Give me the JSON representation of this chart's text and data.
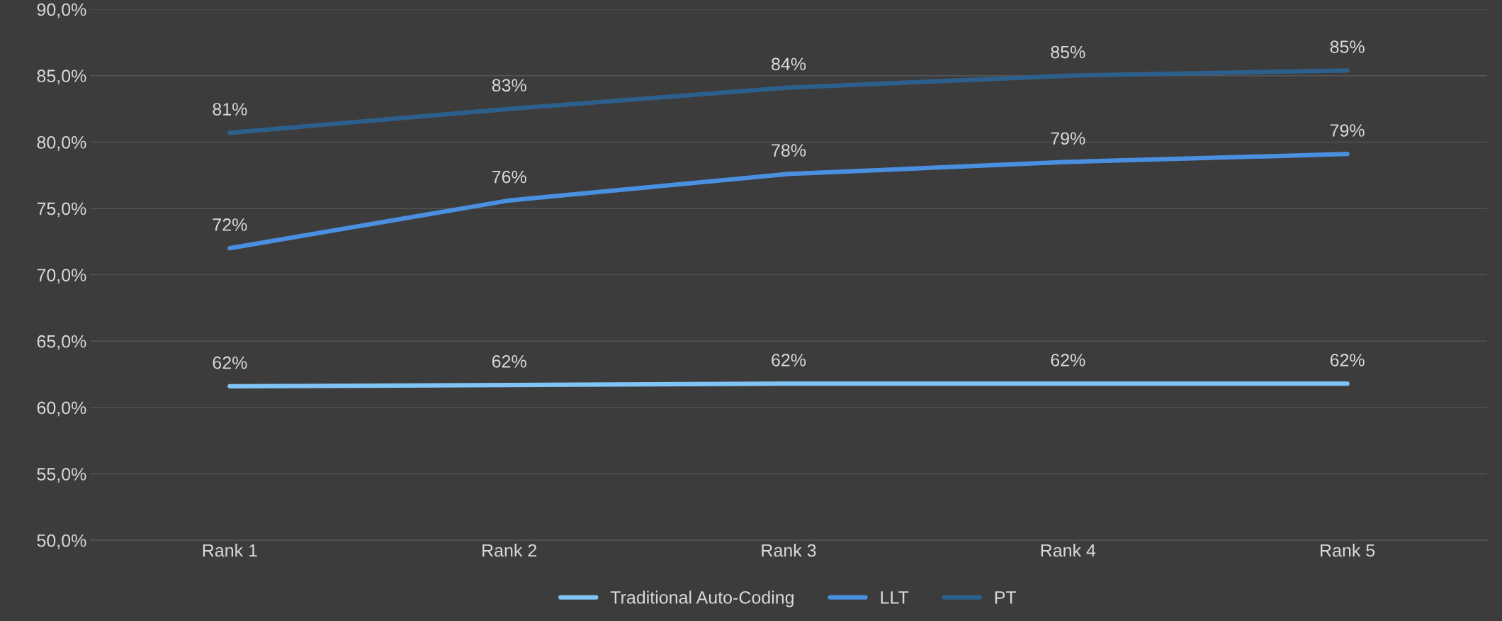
{
  "chart_data": {
    "type": "line",
    "categories": [
      "Rank 1",
      "Rank 2",
      "Rank 3",
      "Rank 4",
      "Rank 5"
    ],
    "series": [
      {
        "name": "Traditional Auto-Coding",
        "color": "#7fc4f4",
        "values": [
          61.6,
          61.7,
          61.8,
          61.8,
          61.8
        ],
        "value_labels": [
          "62%",
          "62%",
          "62%",
          "62%",
          "62%"
        ]
      },
      {
        "name": "LLT",
        "color": "#4a8fe0",
        "values": [
          72.0,
          75.6,
          77.6,
          78.5,
          79.1
        ],
        "value_labels": [
          "72%",
          "76%",
          "78%",
          "79%",
          "79%"
        ]
      },
      {
        "name": "PT",
        "color": "#2d5f8c",
        "values": [
          80.7,
          82.5,
          84.1,
          85.0,
          85.4
        ],
        "value_labels": [
          "81%",
          "83%",
          "84%",
          "85%",
          "85%"
        ]
      }
    ],
    "ylim": [
      50,
      90
    ],
    "yticks": [
      {
        "value": 50,
        "label": "50,0%"
      },
      {
        "value": 55,
        "label": "55,0%"
      },
      {
        "value": 60,
        "label": "60,0%"
      },
      {
        "value": 65,
        "label": "65,0%"
      },
      {
        "value": 70,
        "label": "70,0%"
      },
      {
        "value": 75,
        "label": "75,0%"
      },
      {
        "value": 80,
        "label": "80,0%"
      },
      {
        "value": 85,
        "label": "85,0%"
      },
      {
        "value": 90,
        "label": "90,0%"
      }
    ],
    "grid": "y",
    "legend": "bottom",
    "marker": "none",
    "line_style": "solid"
  }
}
